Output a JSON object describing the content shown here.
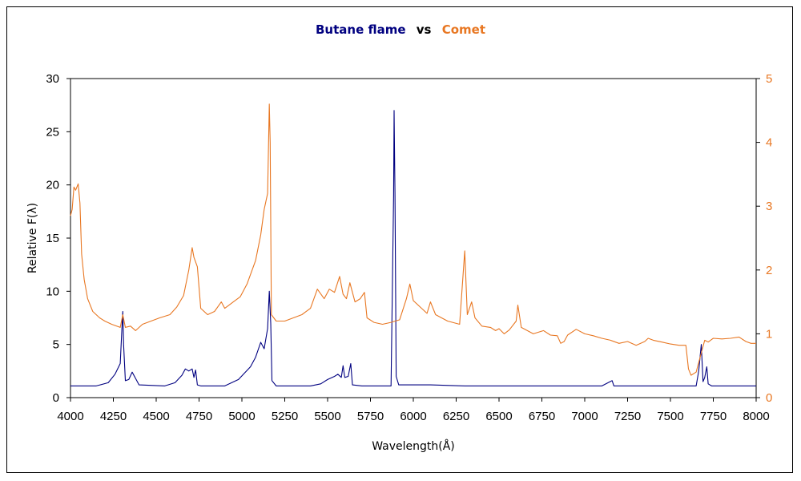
{
  "chart_data": {
    "type": "line",
    "title": {
      "series1": "Butane flame",
      "vs": "vs",
      "series2": "Comet"
    },
    "xlabel": "Wavelength(Å)",
    "ylabel": "Relative F(λ)",
    "xlim": [
      4000,
      8000
    ],
    "ylim_left": [
      0,
      30
    ],
    "ylim_right": [
      0,
      5
    ],
    "x_ticks": [
      "4000",
      "4250",
      "4500",
      "4750",
      "5000",
      "5250",
      "5500",
      "5750",
      "6000",
      "6250",
      "6500",
      "6750",
      "7000",
      "7250",
      "7500",
      "7750",
      "8000"
    ],
    "y_left_ticks": [
      "0",
      "5",
      "10",
      "15",
      "20",
      "25",
      "30"
    ],
    "y_right_ticks": [
      "0",
      "1",
      "2",
      "3",
      "4",
      "5"
    ],
    "colors": {
      "butane": "#000080",
      "comet": "#E87722",
      "axes": "#000000"
    },
    "series": [
      {
        "name": "Butane flame",
        "axis": "left",
        "points": [
          [
            4000,
            1.1
          ],
          [
            4150,
            1.1
          ],
          [
            4220,
            1.4
          ],
          [
            4260,
            2.2
          ],
          [
            4290,
            3.2
          ],
          [
            4300,
            6.5
          ],
          [
            4305,
            8.1
          ],
          [
            4310,
            5.0
          ],
          [
            4320,
            1.6
          ],
          [
            4340,
            1.7
          ],
          [
            4360,
            2.4
          ],
          [
            4380,
            1.8
          ],
          [
            4400,
            1.2
          ],
          [
            4550,
            1.1
          ],
          [
            4610,
            1.4
          ],
          [
            4650,
            2.1
          ],
          [
            4670,
            2.7
          ],
          [
            4690,
            2.5
          ],
          [
            4710,
            2.7
          ],
          [
            4720,
            1.9
          ],
          [
            4730,
            2.6
          ],
          [
            4740,
            1.2
          ],
          [
            4760,
            1.1
          ],
          [
            4900,
            1.1
          ],
          [
            4980,
            1.7
          ],
          [
            5050,
            2.9
          ],
          [
            5080,
            3.8
          ],
          [
            5110,
            5.2
          ],
          [
            5130,
            4.6
          ],
          [
            5150,
            6.5
          ],
          [
            5160,
            10.0
          ],
          [
            5168,
            7.0
          ],
          [
            5175,
            1.6
          ],
          [
            5200,
            1.1
          ],
          [
            5400,
            1.1
          ],
          [
            5460,
            1.3
          ],
          [
            5500,
            1.7
          ],
          [
            5540,
            2.0
          ],
          [
            5560,
            2.2
          ],
          [
            5580,
            1.9
          ],
          [
            5590,
            3.0
          ],
          [
            5600,
            1.9
          ],
          [
            5620,
            2.0
          ],
          [
            5635,
            3.2
          ],
          [
            5645,
            1.2
          ],
          [
            5700,
            1.1
          ],
          [
            5870,
            1.1
          ],
          [
            5885,
            19.0
          ],
          [
            5888,
            27.0
          ],
          [
            5893,
            19.3
          ],
          [
            5900,
            2.0
          ],
          [
            5915,
            1.2
          ],
          [
            6100,
            1.2
          ],
          [
            6300,
            1.1
          ],
          [
            7100,
            1.1
          ],
          [
            7160,
            1.6
          ],
          [
            7170,
            1.1
          ],
          [
            7650,
            1.1
          ],
          [
            7665,
            2.5
          ],
          [
            7680,
            5.0
          ],
          [
            7690,
            1.5
          ],
          [
            7700,
            1.9
          ],
          [
            7712,
            2.9
          ],
          [
            7720,
            1.3
          ],
          [
            7740,
            1.1
          ],
          [
            8000,
            1.1
          ]
        ]
      },
      {
        "name": "Comet",
        "axis": "right",
        "points": [
          [
            4000,
            2.85
          ],
          [
            4010,
            2.95
          ],
          [
            4020,
            3.3
          ],
          [
            4030,
            3.25
          ],
          [
            4045,
            3.35
          ],
          [
            4055,
            3.05
          ],
          [
            4065,
            2.25
          ],
          [
            4080,
            1.85
          ],
          [
            4100,
            1.55
          ],
          [
            4130,
            1.35
          ],
          [
            4170,
            1.25
          ],
          [
            4200,
            1.2
          ],
          [
            4240,
            1.15
          ],
          [
            4290,
            1.1
          ],
          [
            4305,
            1.3
          ],
          [
            4320,
            1.1
          ],
          [
            4350,
            1.12
          ],
          [
            4380,
            1.05
          ],
          [
            4420,
            1.15
          ],
          [
            4470,
            1.2
          ],
          [
            4520,
            1.25
          ],
          [
            4580,
            1.3
          ],
          [
            4620,
            1.42
          ],
          [
            4660,
            1.6
          ],
          [
            4690,
            2.0
          ],
          [
            4710,
            2.35
          ],
          [
            4720,
            2.2
          ],
          [
            4740,
            2.05
          ],
          [
            4760,
            1.4
          ],
          [
            4800,
            1.3
          ],
          [
            4840,
            1.35
          ],
          [
            4880,
            1.5
          ],
          [
            4900,
            1.4
          ],
          [
            4950,
            1.5
          ],
          [
            4990,
            1.58
          ],
          [
            5030,
            1.78
          ],
          [
            5080,
            2.15
          ],
          [
            5110,
            2.55
          ],
          [
            5130,
            2.95
          ],
          [
            5150,
            3.2
          ],
          [
            5160,
            4.6
          ],
          [
            5165,
            4.0
          ],
          [
            5172,
            1.3
          ],
          [
            5200,
            1.2
          ],
          [
            5250,
            1.2
          ],
          [
            5300,
            1.25
          ],
          [
            5350,
            1.3
          ],
          [
            5400,
            1.4
          ],
          [
            5440,
            1.7
          ],
          [
            5480,
            1.55
          ],
          [
            5510,
            1.7
          ],
          [
            5540,
            1.65
          ],
          [
            5570,
            1.9
          ],
          [
            5590,
            1.62
          ],
          [
            5610,
            1.55
          ],
          [
            5630,
            1.8
          ],
          [
            5660,
            1.5
          ],
          [
            5690,
            1.55
          ],
          [
            5715,
            1.65
          ],
          [
            5730,
            1.25
          ],
          [
            5770,
            1.18
          ],
          [
            5820,
            1.15
          ],
          [
            5870,
            1.18
          ],
          [
            5920,
            1.22
          ],
          [
            5960,
            1.55
          ],
          [
            5980,
            1.78
          ],
          [
            6000,
            1.52
          ],
          [
            6040,
            1.42
          ],
          [
            6080,
            1.32
          ],
          [
            6100,
            1.5
          ],
          [
            6130,
            1.3
          ],
          [
            6200,
            1.2
          ],
          [
            6270,
            1.15
          ],
          [
            6300,
            2.3
          ],
          [
            6315,
            1.3
          ],
          [
            6340,
            1.5
          ],
          [
            6360,
            1.25
          ],
          [
            6400,
            1.12
          ],
          [
            6450,
            1.1
          ],
          [
            6480,
            1.05
          ],
          [
            6500,
            1.08
          ],
          [
            6530,
            1.0
          ],
          [
            6560,
            1.06
          ],
          [
            6600,
            1.2
          ],
          [
            6610,
            1.45
          ],
          [
            6630,
            1.1
          ],
          [
            6700,
            1.0
          ],
          [
            6760,
            1.05
          ],
          [
            6800,
            0.98
          ],
          [
            6840,
            0.97
          ],
          [
            6860,
            0.85
          ],
          [
            6880,
            0.88
          ],
          [
            6900,
            0.98
          ],
          [
            6950,
            1.07
          ],
          [
            7000,
            1.0
          ],
          [
            7050,
            0.97
          ],
          [
            7100,
            0.93
          ],
          [
            7150,
            0.9
          ],
          [
            7200,
            0.85
          ],
          [
            7250,
            0.88
          ],
          [
            7300,
            0.82
          ],
          [
            7350,
            0.88
          ],
          [
            7370,
            0.93
          ],
          [
            7400,
            0.9
          ],
          [
            7450,
            0.87
          ],
          [
            7500,
            0.84
          ],
          [
            7550,
            0.82
          ],
          [
            7590,
            0.82
          ],
          [
            7605,
            0.45
          ],
          [
            7620,
            0.35
          ],
          [
            7650,
            0.4
          ],
          [
            7680,
            0.7
          ],
          [
            7700,
            0.9
          ],
          [
            7720,
            0.87
          ],
          [
            7750,
            0.93
          ],
          [
            7800,
            0.92
          ],
          [
            7850,
            0.93
          ],
          [
            7900,
            0.95
          ],
          [
            7940,
            0.88
          ],
          [
            7970,
            0.85
          ],
          [
            8000,
            0.85
          ]
        ]
      }
    ]
  }
}
